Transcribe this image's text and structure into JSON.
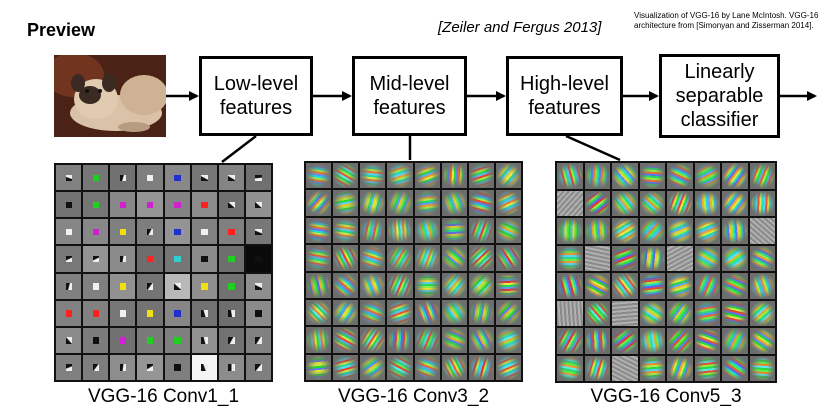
{
  "header": {
    "title": "Preview",
    "citation": "[Zeiler and Fergus 2013]",
    "credit": "Visualization of VGG-16 by Lane McIntosh. VGG-16 architecture from [Simonyan and Zisserman 2014]."
  },
  "pipeline": {
    "stages": [
      {
        "label": "Low-level\nfeatures"
      },
      {
        "label": "Mid-level\nfeatures"
      },
      {
        "label": "High-level\nfeatures"
      },
      {
        "label": "Linearly\nseparable\nclassifier"
      }
    ]
  },
  "panels": [
    {
      "caption": "VGG-16 Conv1_1"
    },
    {
      "caption": "VGG-16 Conv3_2"
    },
    {
      "caption": "VGG-16 Conv5_3"
    }
  ],
  "colors": {
    "ink": "#000000",
    "conv1_background": "#7a7a7a",
    "conv1_accents": [
      "#f0e010",
      "#d020d0",
      "#ff2020",
      "#2030d0",
      "#20d020",
      "#30d0d0",
      "#f0f0f0",
      "#101010"
    ]
  }
}
